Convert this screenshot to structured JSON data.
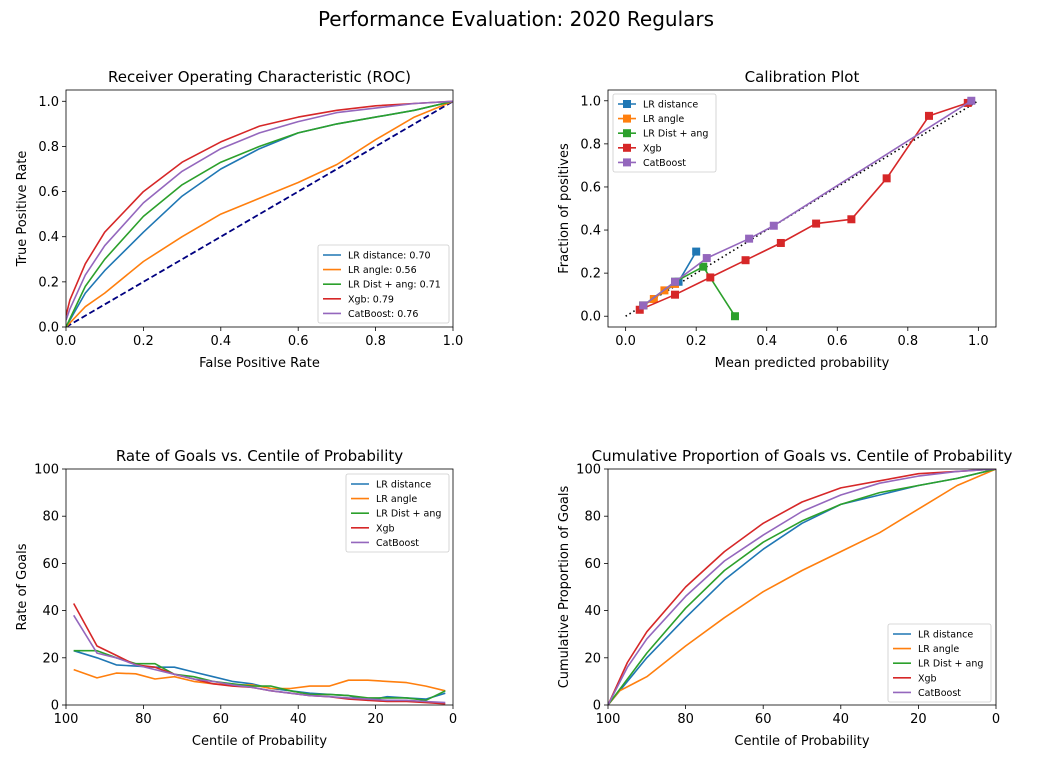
{
  "figure": {
    "suptitle": "Performance Evaluation: 2020 Regulars"
  },
  "colors": {
    "LR distance": "#1f77b4",
    "LR angle": "#ff7f0e",
    "LR Dist + ang": "#2ca02c",
    "Xgb": "#d62728",
    "CatBoost": "#9467bd",
    "diagonal": "#000080"
  },
  "chart_data": [
    {
      "type": "line",
      "title": "Receiver Operating Characteristic (ROC)",
      "xlabel": "False Positive Rate",
      "ylabel": "True Positive Rate",
      "xlim": [
        0,
        1
      ],
      "ylim": [
        0,
        1.05
      ],
      "xticks": [
        "0.0",
        "0.2",
        "0.4",
        "0.6",
        "0.8",
        "1.0"
      ],
      "yticks": [
        "0.0",
        "0.2",
        "0.4",
        "0.6",
        "0.8",
        "1.0"
      ],
      "legend_position": "lower-right",
      "reference_line": {
        "style": "dashed",
        "x": [
          0,
          1
        ],
        "y": [
          0,
          1
        ]
      },
      "series": [
        {
          "name": "LR distance: 0.70",
          "key": "LR distance",
          "x": [
            0,
            0.05,
            0.1,
            0.2,
            0.3,
            0.4,
            0.5,
            0.6,
            0.7,
            0.8,
            0.9,
            1
          ],
          "y": [
            0,
            0.15,
            0.25,
            0.42,
            0.58,
            0.7,
            0.79,
            0.86,
            0.9,
            0.93,
            0.96,
            1
          ]
        },
        {
          "name": "LR angle: 0.56",
          "key": "LR angle",
          "x": [
            0,
            0.05,
            0.1,
            0.2,
            0.3,
            0.4,
            0.5,
            0.6,
            0.7,
            0.8,
            0.9,
            1
          ],
          "y": [
            0,
            0.09,
            0.15,
            0.29,
            0.4,
            0.5,
            0.57,
            0.64,
            0.72,
            0.83,
            0.93,
            1
          ]
        },
        {
          "name": "LR Dist + ang: 0.71",
          "key": "LR Dist + ang",
          "x": [
            0,
            0.05,
            0.1,
            0.2,
            0.3,
            0.4,
            0.5,
            0.6,
            0.7,
            0.8,
            0.9,
            1
          ],
          "y": [
            0,
            0.18,
            0.3,
            0.49,
            0.63,
            0.73,
            0.8,
            0.86,
            0.9,
            0.93,
            0.96,
            1
          ]
        },
        {
          "name": "Xgb: 0.79",
          "key": "Xgb",
          "x": [
            0,
            0.01,
            0.05,
            0.1,
            0.2,
            0.3,
            0.4,
            0.5,
            0.6,
            0.7,
            0.8,
            0.9,
            1
          ],
          "y": [
            0.05,
            0.12,
            0.28,
            0.42,
            0.6,
            0.73,
            0.82,
            0.89,
            0.93,
            0.96,
            0.98,
            0.99,
            1
          ]
        },
        {
          "name": "CatBoost: 0.76",
          "key": "CatBoost",
          "x": [
            0,
            0.01,
            0.05,
            0.1,
            0.2,
            0.3,
            0.4,
            0.5,
            0.6,
            0.7,
            0.8,
            0.9,
            1
          ],
          "y": [
            0.03,
            0.08,
            0.23,
            0.36,
            0.55,
            0.69,
            0.79,
            0.86,
            0.91,
            0.95,
            0.97,
            0.99,
            1
          ]
        }
      ]
    },
    {
      "type": "line",
      "title": "Calibration Plot",
      "xlabel": "Mean predicted probability",
      "ylabel": "Fraction of positives",
      "xlim": [
        -0.05,
        1.05
      ],
      "ylim": [
        -0.05,
        1.05
      ],
      "xticks": [
        "0.0",
        "0.2",
        "0.4",
        "0.6",
        "0.8",
        "1.0"
      ],
      "yticks": [
        "0.0",
        "0.2",
        "0.4",
        "0.6",
        "0.8",
        "1.0"
      ],
      "legend_position": "upper-left",
      "reference_line": {
        "style": "dotted",
        "x": [
          0,
          1
        ],
        "y": [
          0,
          1
        ]
      },
      "markers": "square",
      "series": [
        {
          "name": "LR distance",
          "key": "LR distance",
          "x": [
            0.05,
            0.15,
            0.2
          ],
          "y": [
            0.05,
            0.16,
            0.3
          ]
        },
        {
          "name": "LR angle",
          "key": "LR angle",
          "x": [
            0.05,
            0.08,
            0.11,
            0.14
          ],
          "y": [
            0.05,
            0.08,
            0.12,
            0.15
          ]
        },
        {
          "name": "LR Dist + ang",
          "key": "LR Dist + ang",
          "x": [
            0.05,
            0.14,
            0.22,
            0.31
          ],
          "y": [
            0.05,
            0.16,
            0.23,
            0.0
          ]
        },
        {
          "name": "Xgb",
          "key": "Xgb",
          "x": [
            0.04,
            0.14,
            0.24,
            0.34,
            0.44,
            0.54,
            0.64,
            0.74,
            0.86,
            0.97
          ],
          "y": [
            0.03,
            0.1,
            0.18,
            0.26,
            0.34,
            0.43,
            0.45,
            0.64,
            0.93,
            0.99
          ]
        },
        {
          "name": "CatBoost",
          "key": "CatBoost",
          "x": [
            0.05,
            0.14,
            0.23,
            0.35,
            0.42,
            0.98
          ],
          "y": [
            0.05,
            0.16,
            0.27,
            0.36,
            0.42,
            1.0
          ]
        }
      ]
    },
    {
      "type": "line",
      "title": "Rate of Goals vs. Centile of Probability",
      "xlabel": "Centile of Probability",
      "ylabel": "Rate of Goals",
      "xlim": [
        100,
        0
      ],
      "ylim": [
        0,
        100
      ],
      "xticks": [
        "100",
        "80",
        "60",
        "40",
        "20",
        "0"
      ],
      "yticks": [
        "0",
        "20",
        "40",
        "60",
        "80",
        "100"
      ],
      "legend_position": "upper-right",
      "series": [
        {
          "name": "LR distance",
          "key": "LR distance",
          "x": [
            98,
            92,
            87,
            82,
            77,
            72,
            67,
            62,
            57,
            52,
            47,
            42,
            37,
            32,
            27,
            22,
            17,
            12,
            7,
            2
          ],
          "y": [
            23,
            20,
            17,
            16.5,
            16,
            16,
            14,
            12,
            10,
            9,
            7,
            6,
            5,
            4.5,
            4,
            2,
            3.5,
            3,
            2.5,
            5
          ]
        },
        {
          "name": "LR angle",
          "key": "LR angle",
          "x": [
            98,
            92,
            87,
            82,
            77,
            72,
            67,
            62,
            57,
            52,
            47,
            42,
            37,
            32,
            27,
            22,
            17,
            12,
            7,
            2
          ],
          "y": [
            15,
            11.5,
            13.5,
            13.2,
            11,
            12,
            10,
            9,
            8.5,
            8.5,
            7,
            7,
            8,
            8,
            10.5,
            10.5,
            10,
            9.5,
            8,
            6
          ]
        },
        {
          "name": "LR Dist + ang",
          "key": "LR Dist + ang",
          "x": [
            98,
            92,
            87,
            82,
            77,
            72,
            67,
            62,
            57,
            52,
            47,
            42,
            37,
            32,
            27,
            22,
            17,
            12,
            7,
            2
          ],
          "y": [
            23,
            23,
            20,
            17.5,
            17.5,
            13,
            12,
            10,
            9,
            8,
            8,
            6,
            4.5,
            4.5,
            4,
            3,
            3,
            3,
            2,
            6
          ]
        },
        {
          "name": "Xgb",
          "key": "Xgb",
          "x": [
            98,
            92,
            87,
            82,
            77,
            72,
            67,
            62,
            57,
            52,
            47,
            42,
            37,
            32,
            27,
            22,
            17,
            12,
            7,
            2
          ],
          "y": [
            43,
            25,
            21,
            17,
            16,
            13,
            11,
            9,
            8,
            7.5,
            6,
            5,
            4,
            3.5,
            2.5,
            2,
            1.5,
            1.5,
            1,
            0.5
          ]
        },
        {
          "name": "CatBoost",
          "key": "CatBoost",
          "x": [
            98,
            92,
            87,
            82,
            77,
            72,
            67,
            62,
            57,
            52,
            47,
            42,
            37,
            32,
            27,
            22,
            17,
            12,
            7,
            2
          ],
          "y": [
            38,
            22,
            20,
            17,
            15,
            13,
            11,
            10,
            8.5,
            7.5,
            6,
            5,
            4,
            3.5,
            3,
            2.5,
            2,
            2,
            1.5,
            1
          ]
        }
      ]
    },
    {
      "type": "line",
      "title": "Cumulative Proportion of Goals vs. Centile of Probability",
      "xlabel": "Centile of Probability",
      "ylabel": "Cumulative Proportion of Goals",
      "xlim": [
        100,
        0
      ],
      "ylim": [
        0,
        100
      ],
      "xticks": [
        "100",
        "80",
        "60",
        "40",
        "20",
        "0"
      ],
      "yticks": [
        "0",
        "20",
        "40",
        "60",
        "80",
        "100"
      ],
      "legend_position": "lower-right",
      "series": [
        {
          "name": "LR distance",
          "key": "LR distance",
          "x": [
            100,
            90,
            80,
            70,
            60,
            50,
            40,
            30,
            20,
            10,
            0
          ],
          "y": [
            0,
            20,
            37,
            53,
            66,
            77,
            85,
            89,
            93,
            96,
            100
          ]
        },
        {
          "name": "LR angle",
          "key": "LR angle",
          "x": [
            100,
            97,
            90,
            80,
            70,
            60,
            50,
            40,
            30,
            20,
            10,
            0
          ],
          "y": [
            0,
            6,
            12,
            25,
            37,
            48,
            57,
            65,
            73,
            83,
            93,
            100
          ]
        },
        {
          "name": "LR Dist + ang",
          "key": "LR Dist + ang",
          "x": [
            100,
            90,
            80,
            70,
            60,
            50,
            40,
            30,
            20,
            10,
            0
          ],
          "y": [
            0,
            22,
            41,
            57,
            69,
            78,
            85,
            90,
            93,
            96,
            100
          ]
        },
        {
          "name": "Xgb",
          "key": "Xgb",
          "x": [
            100,
            95,
            90,
            80,
            70,
            60,
            50,
            40,
            30,
            20,
            10,
            0
          ],
          "y": [
            0,
            18,
            31,
            50,
            65,
            77,
            86,
            92,
            95,
            98,
            99,
            100
          ]
        },
        {
          "name": "CatBoost",
          "key": "CatBoost",
          "x": [
            100,
            95,
            90,
            80,
            70,
            60,
            50,
            40,
            30,
            20,
            10,
            0
          ],
          "y": [
            0,
            16,
            28,
            46,
            61,
            72,
            82,
            89,
            94,
            97,
            99,
            100
          ]
        }
      ]
    }
  ]
}
